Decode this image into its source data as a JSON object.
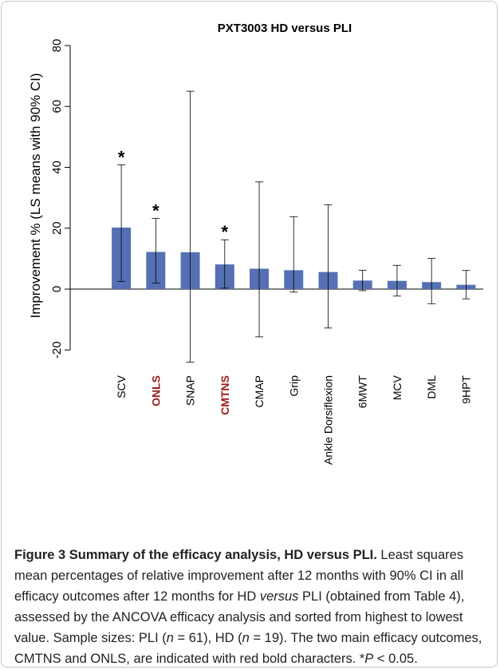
{
  "chart_data": {
    "type": "bar",
    "title": "PXT3003 HD versus PLI",
    "y_label": "Improvement % (LS means with 90% CI)",
    "categories": [
      "SCV",
      "ONLS",
      "SNAP",
      "CMTNS",
      "CMAP",
      "Grip",
      "Ankle Dorsiflexion",
      "6MWT",
      "MCV",
      "DML",
      "9HPT"
    ],
    "values": [
      20.2,
      12.2,
      12.1,
      8.1,
      6.7,
      6.2,
      5.6,
      2.8,
      2.7,
      2.3,
      1.4
    ],
    "ci_lower": [
      2.5,
      2,
      -24,
      0.3,
      -15.7,
      -1,
      -12.8,
      -0.5,
      -2.3,
      -4.8,
      -3.2
    ],
    "ci_upper": [
      40.8,
      23.2,
      65,
      16.2,
      35.2,
      23.8,
      27.7,
      6.2,
      7.8,
      10.1,
      6.1
    ],
    "significance": [
      "*",
      "*",
      null,
      "*",
      null,
      null,
      null,
      null,
      null,
      null,
      null
    ],
    "highlighted": [
      "ONLS",
      "CMTNS"
    ],
    "highlight_color": "#9b1c1c",
    "color": "#5570b4",
    "ylim": [
      -29,
      85
    ],
    "yticks": [
      -20,
      0,
      20,
      40,
      60,
      80
    ]
  },
  "caption": [
    {
      "text": "Figure 3 Summary of the efficacy analysis, HD versus PLI.",
      "style": "bold"
    },
    {
      "text": " Least squares mean percentages of relative improvement after 12 months with 90% CI in all efficacy outcomes after 12 months for HD ",
      "style": "normal"
    },
    {
      "text": "versus",
      "style": "italic"
    },
    {
      "text": " PLI (obtained from Table 4), assessed by the ANCOVA efficacy analysis and sorted from highest to lowest value. Sample sizes: PLI (",
      "style": "normal"
    },
    {
      "text": "n",
      "style": "italic"
    },
    {
      "text": " = 61), HD (",
      "style": "normal"
    },
    {
      "text": "n",
      "style": "italic"
    },
    {
      "text": " = 19). The two main efficacy outcomes, CMTNS and ONLS, are indicated with red bold characters. *",
      "style": "normal"
    },
    {
      "text": "P",
      "style": "italic"
    },
    {
      "text": " < 0.05.",
      "style": "normal"
    }
  ]
}
